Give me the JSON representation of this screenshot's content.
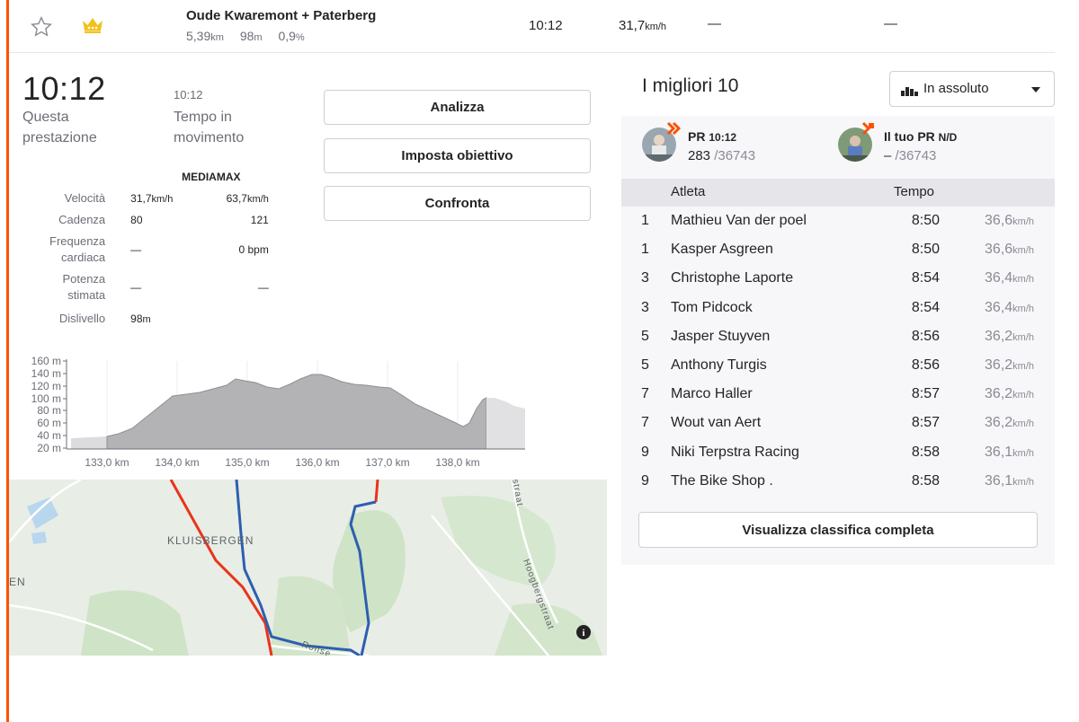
{
  "segment": {
    "name": "Oude Kwaremont + Paterberg",
    "distance": "5,39",
    "distance_unit": "km",
    "elevation": "98",
    "elevation_unit": "m",
    "grade": "0,9",
    "grade_unit": "%",
    "time": "10:12",
    "speed": "31,7",
    "speed_unit": "km/h",
    "dash1": "—",
    "dash2": "—"
  },
  "effort": {
    "time": "10:12",
    "time_label": "Questa prestazione",
    "moving_time": "10:12",
    "moving_label": "Tempo in movimento"
  },
  "buttons": {
    "analyze": "Analizza",
    "set_goal": "Imposta obiettivo",
    "compare": "Confronta"
  },
  "stats": {
    "col_avg": "MEDIA",
    "col_max": "MAX",
    "rows": [
      {
        "label": "Velocità",
        "avg": "31,7",
        "avg_unit": "km/h",
        "max": "63,7",
        "max_unit": "km/h"
      },
      {
        "label": "Cadenza",
        "avg": "80",
        "avg_unit": "",
        "max": "121",
        "max_unit": ""
      },
      {
        "label": "Frequenza cardiaca",
        "avg": "—",
        "avg_unit": "",
        "max": "0 bpm",
        "max_unit": ""
      },
      {
        "label": "Potenza stimata",
        "avg": "—",
        "avg_unit": "",
        "max": "—",
        "max_unit": ""
      },
      {
        "label": "Dislivello",
        "avg": "98",
        "avg_unit": "m",
        "max": "",
        "max_unit": ""
      }
    ]
  },
  "elevation_chart": {
    "y_ticks": [
      "160 m",
      "140 m",
      "120 m",
      "100 m",
      "80 m",
      "60 m",
      "40 m",
      "20 m"
    ],
    "x_ticks": [
      "133,0 km",
      "134,0 km",
      "135,0 km",
      "136,0 km",
      "137,0 km",
      "138,0 km"
    ]
  },
  "map": {
    "labels": [
      "KLUISBERGEN",
      "EN",
      "Hoogbergstraat",
      "Ronse",
      "straat"
    ],
    "info_icon": "info-icon"
  },
  "leaderboard": {
    "title": "I migliori 10",
    "filter": "In assoluto",
    "pr": {
      "label": "PR",
      "time": "10:12",
      "rank": "283",
      "total": "/36743"
    },
    "your_pr": {
      "label": "Il tuo PR",
      "value": "N/D",
      "rank": "–",
      "total": "/36743"
    },
    "col_athlete": "Atleta",
    "col_time": "Tempo",
    "rows": [
      {
        "rank": "1",
        "name": "Mathieu Van der poel",
        "time": "8:50",
        "speed": "36,6",
        "unit": "km/h"
      },
      {
        "rank": "1",
        "name": "Kasper Asgreen",
        "time": "8:50",
        "speed": "36,6",
        "unit": "km/h"
      },
      {
        "rank": "3",
        "name": "Christophe Laporte",
        "time": "8:54",
        "speed": "36,4",
        "unit": "km/h"
      },
      {
        "rank": "3",
        "name": "Tom Pidcock",
        "time": "8:54",
        "speed": "36,4",
        "unit": "km/h"
      },
      {
        "rank": "5",
        "name": "Jasper Stuyven",
        "time": "8:56",
        "speed": "36,2",
        "unit": "km/h"
      },
      {
        "rank": "5",
        "name": "Anthony Turgis",
        "time": "8:56",
        "speed": "36,2",
        "unit": "km/h"
      },
      {
        "rank": "7",
        "name": "Marco Haller",
        "time": "8:57",
        "speed": "36,2",
        "unit": "km/h"
      },
      {
        "rank": "7",
        "name": "Wout van Aert",
        "time": "8:57",
        "speed": "36,2",
        "unit": "km/h"
      },
      {
        "rank": "9",
        "name": "Niki Terpstra Racing",
        "time": "8:58",
        "speed": "36,1",
        "unit": "km/h"
      },
      {
        "rank": "9",
        "name": "The Bike Shop .",
        "time": "8:58",
        "speed": "36,1",
        "unit": "km/h"
      }
    ],
    "full_button": "Visualizza classifica completa"
  },
  "colors": {
    "accent": "#fc5200",
    "route_red": "#e8341c",
    "route_blue": "#2d5fb0"
  }
}
